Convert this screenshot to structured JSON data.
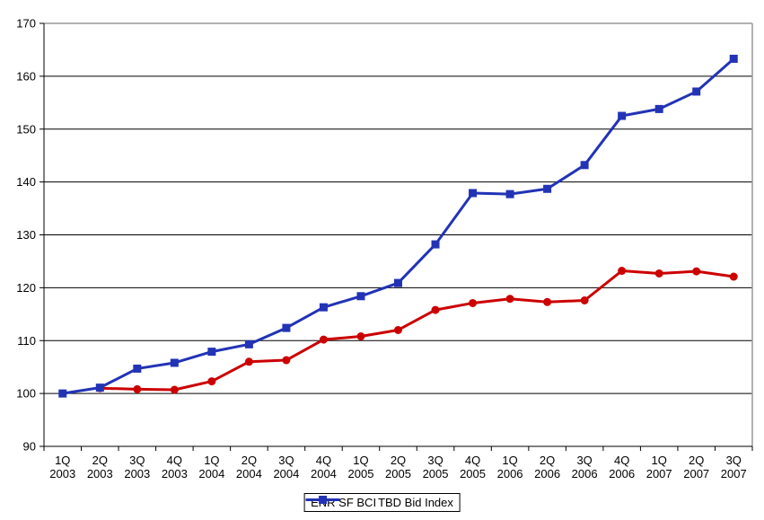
{
  "chart_data": {
    "type": "line",
    "title": "",
    "xlabel": "",
    "ylabel": "",
    "ylim": [
      90,
      170
    ],
    "ytick_step": 10,
    "y_ticks": [
      90,
      100,
      110,
      120,
      130,
      140,
      150,
      160,
      170
    ],
    "grid": "horizontal-on",
    "grid_color": "#000000",
    "plot_border_color": "#999999",
    "legend_position": "bottom-center",
    "categories": [
      "1Q 2003",
      "2Q 2003",
      "3Q 2003",
      "4Q 2003",
      "1Q 2004",
      "2Q 2004",
      "3Q 2004",
      "4Q 2004",
      "1Q 2005",
      "2Q 2005",
      "3Q 2005",
      "4Q 2005",
      "1Q 2006",
      "2Q 2006",
      "3Q 2006",
      "4Q 2006",
      "1Q 2007",
      "2Q 2007",
      "3Q 2007"
    ],
    "series": [
      {
        "name": "ENR SF BCI",
        "color": "#CC0000",
        "marker": "circle",
        "values": [
          null,
          101.0,
          100.8,
          100.7,
          102.3,
          106.0,
          106.3,
          110.2,
          110.8,
          112.0,
          115.8,
          117.1,
          117.9,
          117.3,
          117.6,
          123.2,
          122.7,
          123.1,
          122.1
        ]
      },
      {
        "name": "TBD Bid Index",
        "color": "#2233B6",
        "marker": "square",
        "values": [
          100.0,
          101.1,
          104.7,
          105.8,
          107.9,
          109.3,
          112.4,
          116.3,
          118.4,
          120.9,
          128.2,
          137.9,
          137.7,
          138.7,
          143.2,
          152.5,
          153.8,
          157.1,
          163.3
        ]
      }
    ]
  }
}
